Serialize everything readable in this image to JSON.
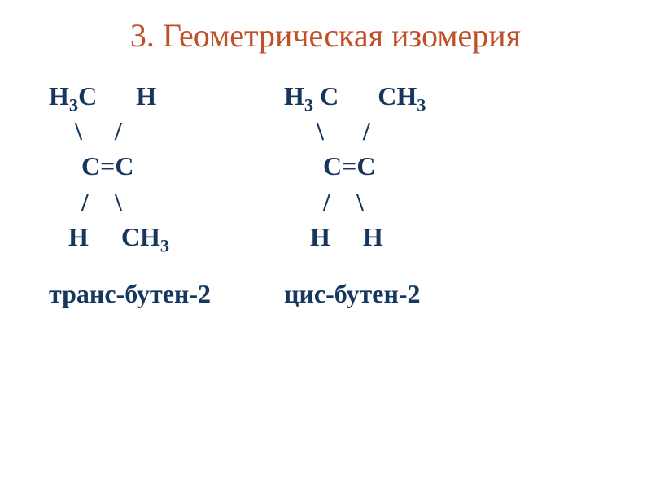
{
  "slide": {
    "title_text": "3. Геометрическая изомерия",
    "title_color": "#c05028",
    "body_color": "#17365d",
    "background_color": "#ffffff",
    "title_fontsize": 40,
    "body_fontsize": 32,
    "isomers": [
      {
        "structure_html": "H<sub>3</sub>C      H\n    \\     /\n     C=C\n     /    \\\n   H     CH<sub>3</sub>",
        "label": "транс-бутен-2"
      },
      {
        "structure_html": "H<sub>3</sub> C      CH<sub>3</sub>\n     \\      /\n      C=C\n      /    \\\n    H     H",
        "label": "цис-бутен-2"
      }
    ]
  }
}
